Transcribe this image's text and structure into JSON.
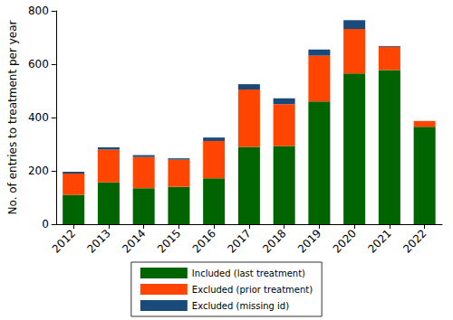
{
  "chart_data": {
    "type": "bar",
    "stacked": true,
    "legend": "bottom",
    "grid": false,
    "y_label": "No. of entries to treatment per year",
    "categories": [
      "2012",
      "2013",
      "2014",
      "2015",
      "2016",
      "2017",
      "2018",
      "2019",
      "2020",
      "2021",
      "2022"
    ],
    "series": [
      {
        "name": "Included (last treatment)",
        "color": "#006400",
        "values": [
          110,
          157,
          135,
          140,
          172,
          290,
          293,
          460,
          565,
          578,
          365
        ]
      },
      {
        "name": "Excluded (prior treatment)",
        "color": "#ff4500",
        "values": [
          80,
          123,
          117,
          102,
          140,
          215,
          157,
          172,
          167,
          87,
          22
        ]
      },
      {
        "name": "Excluded (missing id)",
        "color": "#1a4a7a",
        "values": [
          7,
          8,
          7,
          5,
          13,
          20,
          22,
          23,
          33,
          3,
          0
        ]
      }
    ],
    "ylim": [
      0,
      800
    ],
    "yticks": [
      0,
      200,
      400,
      600,
      800
    ]
  }
}
